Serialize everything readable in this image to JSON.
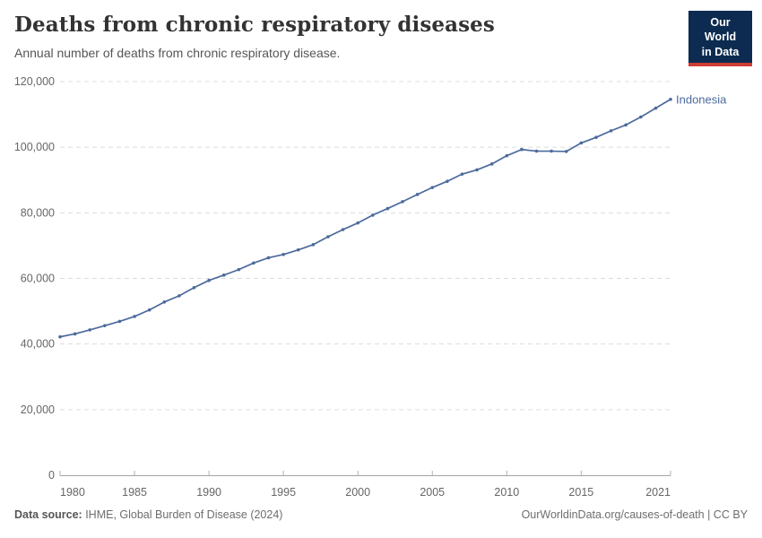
{
  "header": {
    "title": "Deaths from chronic respiratory diseases",
    "subtitle": "Annual number of deaths from chronic respiratory disease."
  },
  "logo": {
    "line1": "Our World",
    "line2": "in Data",
    "bg_color": "#0d2b50",
    "accent_color": "#cd3d34"
  },
  "chart_data": {
    "type": "line",
    "title": "Deaths from chronic respiratory diseases",
    "xlabel": "",
    "ylabel": "",
    "xlim": [
      1980,
      2021
    ],
    "ylim": [
      0,
      120000
    ],
    "grid": "horizontal-dashed",
    "legend_position": "end-of-line",
    "x_ticks": [
      1980,
      1985,
      1990,
      1995,
      2000,
      2005,
      2010,
      2015,
      2021
    ],
    "y_ticks": [
      0,
      20000,
      40000,
      60000,
      80000,
      100000,
      120000
    ],
    "y_tick_labels": [
      "0",
      "20,000",
      "40,000",
      "60,000",
      "80,000",
      "100,000",
      "120,000"
    ],
    "series": [
      {
        "name": "Indonesia",
        "color": "#4c6a9c",
        "x": [
          1980,
          1981,
          1982,
          1983,
          1984,
          1985,
          1986,
          1987,
          1988,
          1989,
          1990,
          1991,
          1992,
          1993,
          1994,
          1995,
          1996,
          1997,
          1998,
          1999,
          2000,
          2001,
          2002,
          2003,
          2004,
          2005,
          2006,
          2007,
          2008,
          2009,
          2010,
          2011,
          2012,
          2013,
          2014,
          2015,
          2016,
          2017,
          2018,
          2019,
          2020,
          2021
        ],
        "values": [
          42200,
          43100,
          44300,
          45600,
          46900,
          48400,
          50400,
          52800,
          54700,
          57200,
          59400,
          61000,
          62700,
          64700,
          66300,
          67300,
          68700,
          70300,
          72700,
          74900,
          76900,
          79300,
          81300,
          83400,
          85600,
          87700,
          89600,
          91800,
          93100,
          94900,
          97400,
          99300,
          98800,
          98800,
          98700,
          101300,
          103000,
          105000,
          106800,
          109200,
          111900,
          114600
        ]
      }
    ]
  },
  "colors": {
    "grid": "#dcdcdc",
    "axis": "#a3a3a3",
    "tick": "#b0b0b0",
    "tick_label": "#666666"
  },
  "footer": {
    "source_label": "Data source:",
    "source_text": " IHME, Global Burden of Disease (2024)",
    "credit": "OurWorldinData.org/causes-of-death | CC BY"
  }
}
